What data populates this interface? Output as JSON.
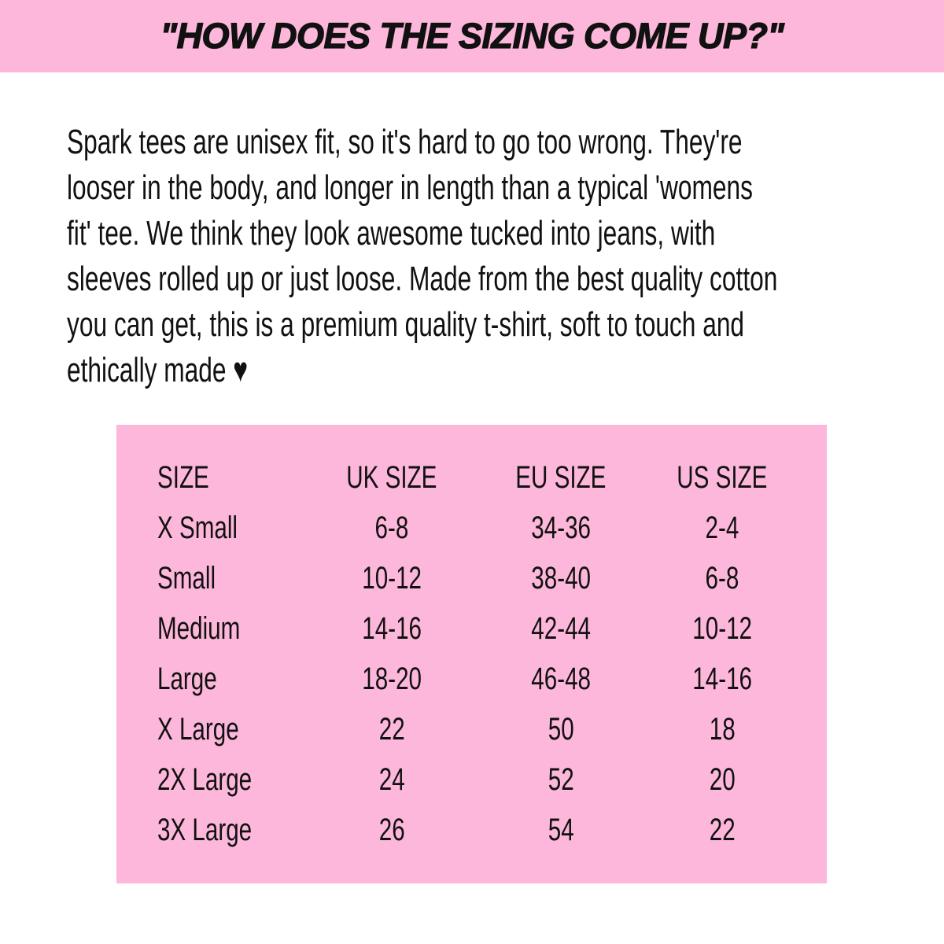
{
  "colors": {
    "pink": "#fdb7da",
    "ink": "#111111",
    "bg": "#ffffff"
  },
  "header": {
    "title": "\"HOW DOES THE SIZING COME UP?\""
  },
  "intro": {
    "text": "Spark tees are unisex fit, so it's hard to go too wrong. They're\nlooser in the body, and longer in length than a typical 'womens\nfit' tee. We think they look awesome tucked into jeans, with\nsleeves rolled up or just loose. Made from the best quality cotton\nyou can get, this is a premium quality t-shirt, soft to touch and\nethically made ♥"
  },
  "size_table": {
    "headers": [
      "SIZE",
      "UK SIZE",
      "EU SIZE",
      "US SIZE"
    ],
    "rows": [
      [
        "X Small",
        "6-8",
        "34-36",
        "2-4"
      ],
      [
        "Small",
        "10-12",
        "38-40",
        "6-8"
      ],
      [
        "Medium",
        "14-16",
        "42-44",
        "10-12"
      ],
      [
        "Large",
        "18-20",
        "46-48",
        "14-16"
      ],
      [
        "X Large",
        "22",
        "50",
        "18"
      ],
      [
        "2X Large",
        "24",
        "52",
        "20"
      ],
      [
        "3X Large",
        "26",
        "54",
        "22"
      ]
    ]
  }
}
